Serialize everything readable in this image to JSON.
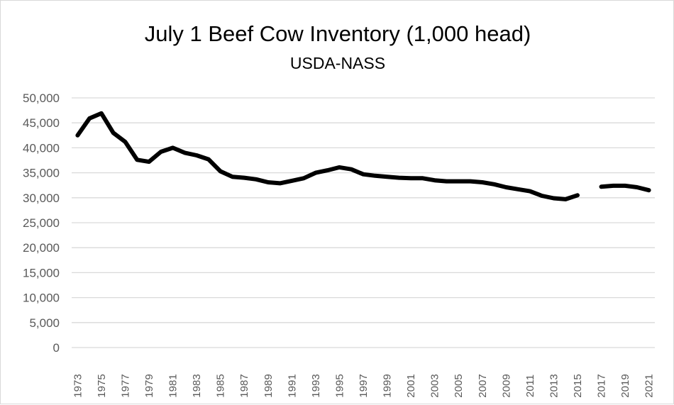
{
  "chart_data": {
    "type": "line",
    "title": "July 1 Beef Cow Inventory (1,000 head)",
    "subtitle": "USDA-NASS",
    "xlabel": "",
    "ylabel": "",
    "ylim": [
      0,
      50000
    ],
    "y_ticks": [
      "0",
      "5,000",
      "10,000",
      "15,000",
      "20,000",
      "25,000",
      "30,000",
      "35,000",
      "40,000",
      "45,000",
      "50,000"
    ],
    "x_tick_labels": [
      "1973",
      "1975",
      "1977",
      "1979",
      "1981",
      "1983",
      "1985",
      "1987",
      "1989",
      "1991",
      "1993",
      "1995",
      "1997",
      "1999",
      "2001",
      "2003",
      "2005",
      "2007",
      "2009",
      "2011",
      "2013",
      "2015",
      "2017",
      "2019",
      "2021"
    ],
    "grid": true,
    "legend": "none",
    "line_color": "#000000",
    "x": [
      1973,
      1974,
      1975,
      1976,
      1977,
      1978,
      1979,
      1980,
      1981,
      1982,
      1983,
      1984,
      1985,
      1986,
      1987,
      1988,
      1989,
      1990,
      1991,
      1992,
      1993,
      1994,
      1995,
      1996,
      1997,
      1998,
      1999,
      2000,
      2001,
      2002,
      2003,
      2004,
      2005,
      2006,
      2007,
      2008,
      2009,
      2010,
      2011,
      2012,
      2013,
      2014,
      2015,
      2016,
      2017,
      2018,
      2019,
      2020,
      2021
    ],
    "series": [
      {
        "values": [
          42500,
          45900,
          46900,
          43000,
          41200,
          37600,
          37200,
          39200,
          40000,
          39000,
          38500,
          37700,
          35300,
          34200,
          34000,
          33700,
          33100,
          32900,
          33400,
          33900,
          35000,
          35500,
          36100,
          35700,
          34700,
          34400,
          34200,
          34000,
          33900,
          33900,
          33500,
          33300,
          33300,
          33300,
          33100,
          32700,
          32100,
          31700,
          31300,
          30400,
          29900,
          29700,
          30500,
          null,
          32200,
          32400,
          32400,
          32100,
          31500
        ]
      }
    ]
  }
}
